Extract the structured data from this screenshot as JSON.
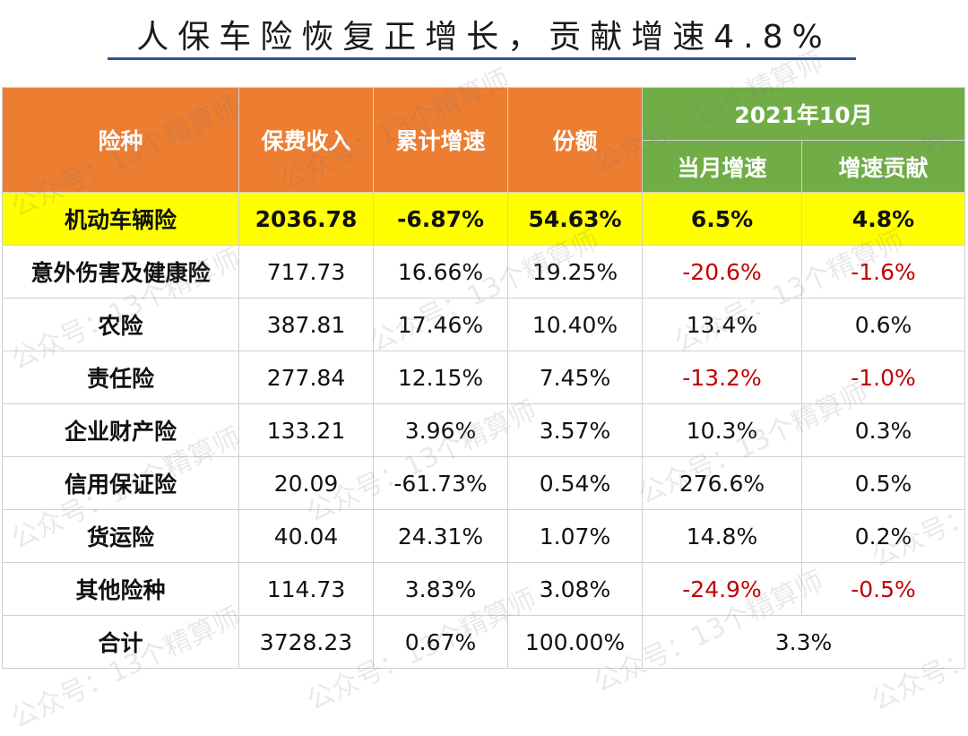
{
  "title": "人保车险恢复正增长，贡献增速4.8%",
  "headers": {
    "category": "险种",
    "premium": "保费收入",
    "cum_growth": "累计增速",
    "share": "份额",
    "period": "2021年10月",
    "month_growth": "当月增速",
    "contribution": "增速贡献"
  },
  "rows": [
    {
      "name": "机动车辆险",
      "premium": "2036.78",
      "cum_growth": "-6.87%",
      "share": "54.63%",
      "month_growth": "6.5%",
      "contribution": "4.8%"
    },
    {
      "name": "意外伤害及健康险",
      "premium": "717.73",
      "cum_growth": "16.66%",
      "share": "19.25%",
      "month_growth": "-20.6%",
      "contribution": "-1.6%"
    },
    {
      "name": "农险",
      "premium": "387.81",
      "cum_growth": "17.46%",
      "share": "10.40%",
      "month_growth": "13.4%",
      "contribution": "0.6%"
    },
    {
      "name": "责任险",
      "premium": "277.84",
      "cum_growth": "12.15%",
      "share": "7.45%",
      "month_growth": "-13.2%",
      "contribution": "-1.0%"
    },
    {
      "name": "企业财产险",
      "premium": "133.21",
      "cum_growth": "3.96%",
      "share": "3.57%",
      "month_growth": "10.3%",
      "contribution": "0.3%"
    },
    {
      "name": "信用保证险",
      "premium": "20.09",
      "cum_growth": "-61.73%",
      "share": "0.54%",
      "month_growth": "276.6%",
      "contribution": "0.5%"
    },
    {
      "name": "货运险",
      "premium": "40.04",
      "cum_growth": "24.31%",
      "share": "1.07%",
      "month_growth": "14.8%",
      "contribution": "0.2%"
    },
    {
      "name": "其他险种",
      "premium": "114.73",
      "cum_growth": "3.83%",
      "share": "3.08%",
      "month_growth": "-24.9%",
      "contribution": "-0.5%"
    }
  ],
  "total": {
    "name": "合计",
    "premium": "3728.23",
    "cum_growth": "0.67%",
    "share": "100.00%",
    "month_growth": "3.3%"
  },
  "watermark": "公众号：13个精算师",
  "colors": {
    "header_orange": "#ed7d31",
    "header_green": "#70ad47",
    "highlight": "#ffff00",
    "negative": "#c00000",
    "title_rule": "#2f5496"
  }
}
